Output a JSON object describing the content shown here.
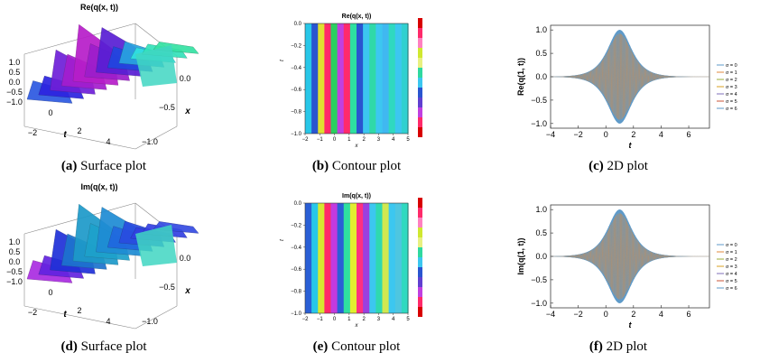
{
  "captions": [
    {
      "tag": "(a)",
      "text": "Surface plot"
    },
    {
      "tag": "(b)",
      "text": "Contour plot"
    },
    {
      "tag": "(c)",
      "text": "2D plot"
    },
    {
      "tag": "(d)",
      "text": "Surface plot"
    },
    {
      "tag": "(e)",
      "text": "Contour plot"
    },
    {
      "tag": "(f)",
      "text": "2D plot"
    }
  ],
  "legend_entries": [
    "σ = 0",
    "σ = 1",
    "σ = 2",
    "σ = 3",
    "σ = 4",
    "σ = 5",
    "σ = 6"
  ],
  "legend_colors": [
    "#5e9ac9",
    "#e08a3c",
    "#9bae3a",
    "#d8a020",
    "#7f6fb8",
    "#c8543a",
    "#5e9ac9"
  ],
  "chart_data": [
    {
      "id": "a",
      "type": "surface",
      "title": "Re(q(x, t))",
      "zlim": [
        -1.0,
        1.0
      ],
      "z_ticks": [
        "1.0",
        "0.5",
        "0.0",
        "−0.5",
        "−1.0"
      ],
      "t_ticks": [
        "−2",
        "0",
        "2",
        "4"
      ],
      "x_ticks": [
        "0.0",
        "−0.5",
        "−1.0"
      ],
      "tlabel": "t",
      "xlabel": "x"
    },
    {
      "id": "b",
      "type": "heatmap",
      "title": "Re(q(x, t))",
      "xlim": [
        -2,
        5
      ],
      "ylim": [
        -1.0,
        0.0
      ],
      "x_ticks": [
        "−2",
        "−1",
        "0",
        "1",
        "2",
        "3",
        "4",
        "5"
      ],
      "y_ticks": [
        "0.0",
        "−0.2",
        "−0.4",
        "−0.6",
        "−0.8",
        "−1.0"
      ],
      "xlabel": "x",
      "ylabel": "t"
    },
    {
      "id": "c",
      "type": "line",
      "ylabel": "Re(q(1, t))",
      "xlabel": "t",
      "xlim": [
        -4,
        7.5
      ],
      "ylim": [
        -1.1,
        1.1
      ],
      "x_ticks": [
        "−4",
        "−2",
        "0",
        "2",
        "4",
        "6"
      ],
      "y_ticks": [
        "1.0",
        "0.5",
        "0.0",
        "−0.5",
        "−1.0"
      ],
      "series_names": [
        "σ = 0",
        "σ = 1",
        "σ = 2",
        "σ = 3",
        "σ = 4",
        "σ = 5",
        "σ = 6"
      ],
      "envelope": {
        "peak_t": 1.0,
        "peak_amplitude": 1.0
      }
    },
    {
      "id": "d",
      "type": "surface",
      "title": "Im(q(x, t))",
      "zlim": [
        -1.0,
        1.0
      ],
      "z_ticks": [
        "1.0",
        "0.5",
        "0.0",
        "−0.5",
        "−1.0"
      ],
      "t_ticks": [
        "−2",
        "0",
        "2",
        "4"
      ],
      "x_ticks": [
        "0.0",
        "−0.5",
        "−1.0"
      ],
      "tlabel": "t",
      "xlabel": "x"
    },
    {
      "id": "e",
      "type": "heatmap",
      "title": "Im(q(x, t))",
      "xlim": [
        -2,
        5
      ],
      "ylim": [
        -1.0,
        0.0
      ],
      "x_ticks": [
        "−2",
        "−1",
        "0",
        "1",
        "2",
        "3",
        "4",
        "5"
      ],
      "y_ticks": [
        "0.0",
        "−0.2",
        "−0.4",
        "−0.6",
        "−0.8",
        "−1.0"
      ],
      "xlabel": "x",
      "ylabel": "t"
    },
    {
      "id": "f",
      "type": "line",
      "ylabel": "Im(q(1, t))",
      "xlabel": "t",
      "xlim": [
        -4,
        7.5
      ],
      "ylim": [
        -1.1,
        1.1
      ],
      "x_ticks": [
        "−4",
        "−2",
        "0",
        "2",
        "4",
        "6"
      ],
      "y_ticks": [
        "1.0",
        "0.5",
        "0.0",
        "−0.5",
        "−1.0"
      ],
      "series_names": [
        "σ = 0",
        "σ = 1",
        "σ = 2",
        "σ = 3",
        "σ = 4",
        "σ = 5",
        "σ = 6"
      ],
      "envelope": {
        "peak_t": 1.0,
        "peak_amplitude": 1.0
      }
    }
  ]
}
